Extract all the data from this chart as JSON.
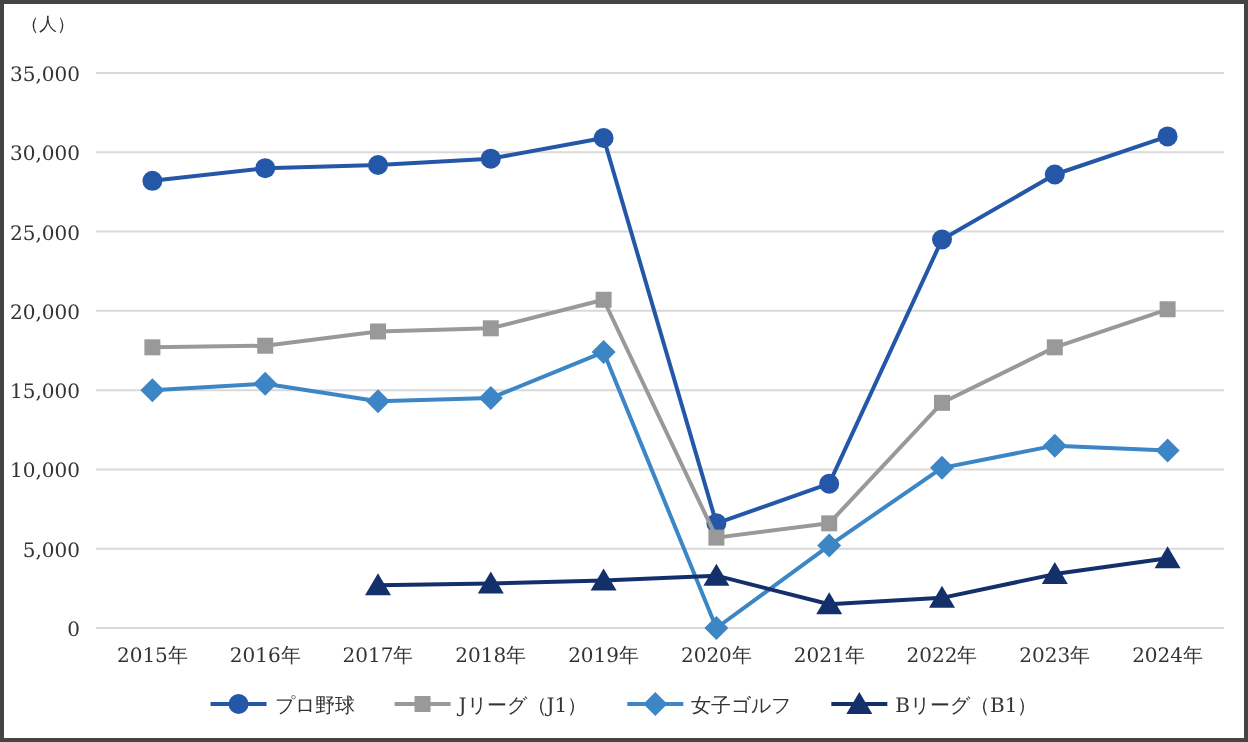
{
  "chart_data": {
    "type": "line",
    "ylabel": "（人）",
    "categories": [
      "2015年",
      "2016年",
      "2017年",
      "2018年",
      "2019年",
      "2020年",
      "2021年",
      "2022年",
      "2023年",
      "2024年"
    ],
    "ylim": [
      0,
      35000
    ],
    "yticks": [
      {
        "value": 0,
        "label": "0"
      },
      {
        "value": 5000,
        "label": "5,000"
      },
      {
        "value": 10000,
        "label": "10,000"
      },
      {
        "value": 15000,
        "label": "15,000"
      },
      {
        "value": 20000,
        "label": "20,000"
      },
      {
        "value": 25000,
        "label": "25,000"
      },
      {
        "value": 30000,
        "label": "30,000"
      },
      {
        "value": 35000,
        "label": "35,000"
      }
    ],
    "grid": "y",
    "legend": "bottom",
    "series": [
      {
        "name": "プロ野球",
        "color": "#2457a8",
        "marker": "circle",
        "values": [
          28200,
          29000,
          29200,
          29600,
          30900,
          6600,
          9100,
          24500,
          28600,
          31000
        ]
      },
      {
        "name": "Jリーグ（J1）",
        "color": "#999999",
        "marker": "square",
        "values": [
          17700,
          17800,
          18700,
          18900,
          20700,
          5700,
          6600,
          14200,
          17700,
          20100
        ]
      },
      {
        "name": "女子ゴルフ",
        "color": "#3d86c6",
        "marker": "diamond",
        "values": [
          15000,
          15400,
          14300,
          14500,
          17400,
          0,
          5200,
          10100,
          11500,
          11200
        ]
      },
      {
        "name": "Bリーグ（B1）",
        "color": "#13306b",
        "marker": "triangle",
        "values": [
          null,
          null,
          2700,
          2800,
          3000,
          3300,
          1500,
          1900,
          3400,
          4400
        ]
      }
    ]
  }
}
